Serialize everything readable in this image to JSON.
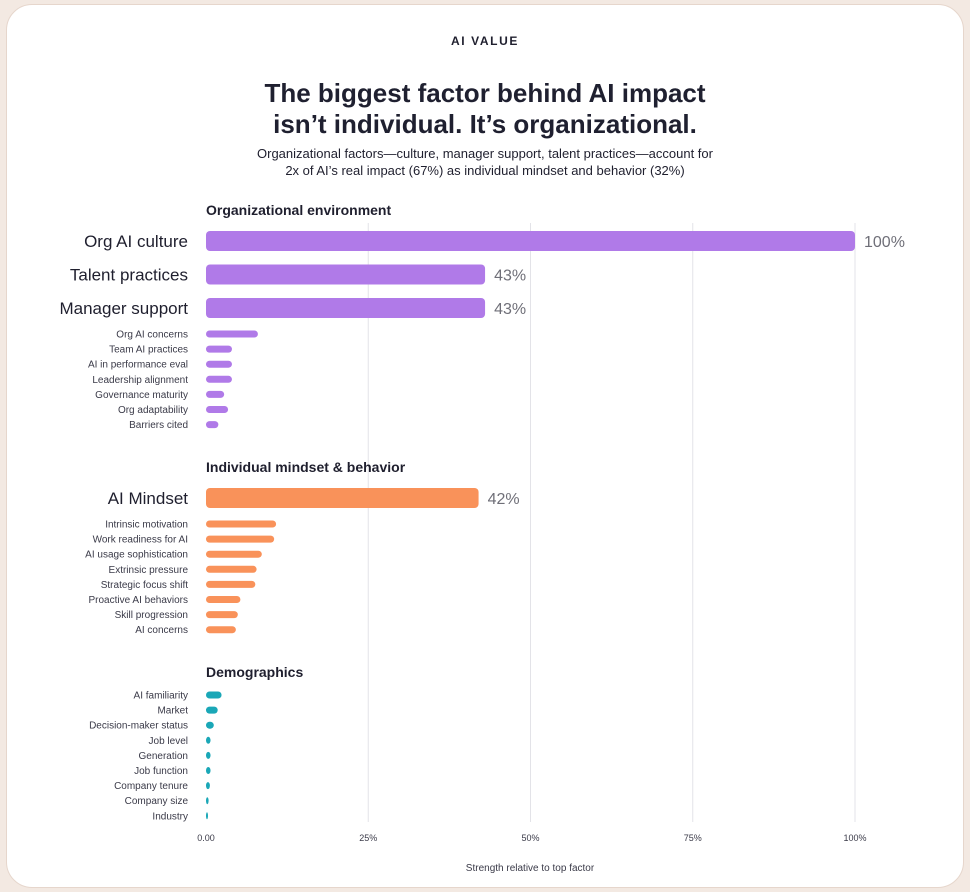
{
  "header": {
    "kicker": "AI VALUE",
    "title_line1": "The biggest factor behind AI impact",
    "title_line2": "isn’t individual. It’s organizational.",
    "subtitle_line1": "Organizational factors—culture, manager support, talent practices—account for",
    "subtitle_line2": "2x of AI’s real impact (67%) as individual mindset and behavior (32%)"
  },
  "chart_data": {
    "type": "bar",
    "orientation": "horizontal",
    "xlabel": "Strength relative to top factor",
    "xlim": [
      0,
      100
    ],
    "xticks": [
      "0.00",
      "25%",
      "50%",
      "75%",
      "100%"
    ],
    "grid": true,
    "groups": [
      {
        "name": "Organizational environment",
        "color": "#b07ae8",
        "items": [
          {
            "label": "Org AI culture",
            "value": 100,
            "value_label": "100%",
            "major": true
          },
          {
            "label": "Talent practices",
            "value": 43,
            "value_label": "43%",
            "major": true
          },
          {
            "label": "Manager support",
            "value": 43,
            "value_label": "43%",
            "major": true
          },
          {
            "label": "Org AI concerns",
            "value": 8
          },
          {
            "label": "Team AI practices",
            "value": 4
          },
          {
            "label": "AI in performance eval",
            "value": 4
          },
          {
            "label": "Leadership alignment",
            "value": 4
          },
          {
            "label": "Governance maturity",
            "value": 2.8
          },
          {
            "label": "Org adaptability",
            "value": 3.4
          },
          {
            "label": "Barriers cited",
            "value": 1.9
          }
        ]
      },
      {
        "name": "Individual mindset & behavior",
        "color": "#f9925a",
        "items": [
          {
            "label": "AI Mindset",
            "value": 42,
            "value_label": "42%",
            "major": true
          },
          {
            "label": "Intrinsic motivation",
            "value": 10.8
          },
          {
            "label": "Work readiness for AI",
            "value": 10.5
          },
          {
            "label": "AI usage sophistication",
            "value": 8.6
          },
          {
            "label": "Extrinsic pressure",
            "value": 7.8
          },
          {
            "label": "Strategic focus shift",
            "value": 7.6
          },
          {
            "label": "Proactive AI behaviors",
            "value": 5.3
          },
          {
            "label": "Skill progression",
            "value": 4.9
          },
          {
            "label": "AI concerns",
            "value": 4.6
          }
        ]
      },
      {
        "name": "Demographics",
        "color": "#1aa7b7",
        "items": [
          {
            "label": "AI familiarity",
            "value": 2.4
          },
          {
            "label": "Market",
            "value": 1.8
          },
          {
            "label": "Decision-maker status",
            "value": 1.2
          },
          {
            "label": "Job level",
            "value": 0.7
          },
          {
            "label": "Generation",
            "value": 0.7
          },
          {
            "label": "Job function",
            "value": 0.7
          },
          {
            "label": "Company tenure",
            "value": 0.6
          },
          {
            "label": "Company size",
            "value": 0.4
          },
          {
            "label": "Industry",
            "value": 0.2
          }
        ]
      }
    ]
  }
}
